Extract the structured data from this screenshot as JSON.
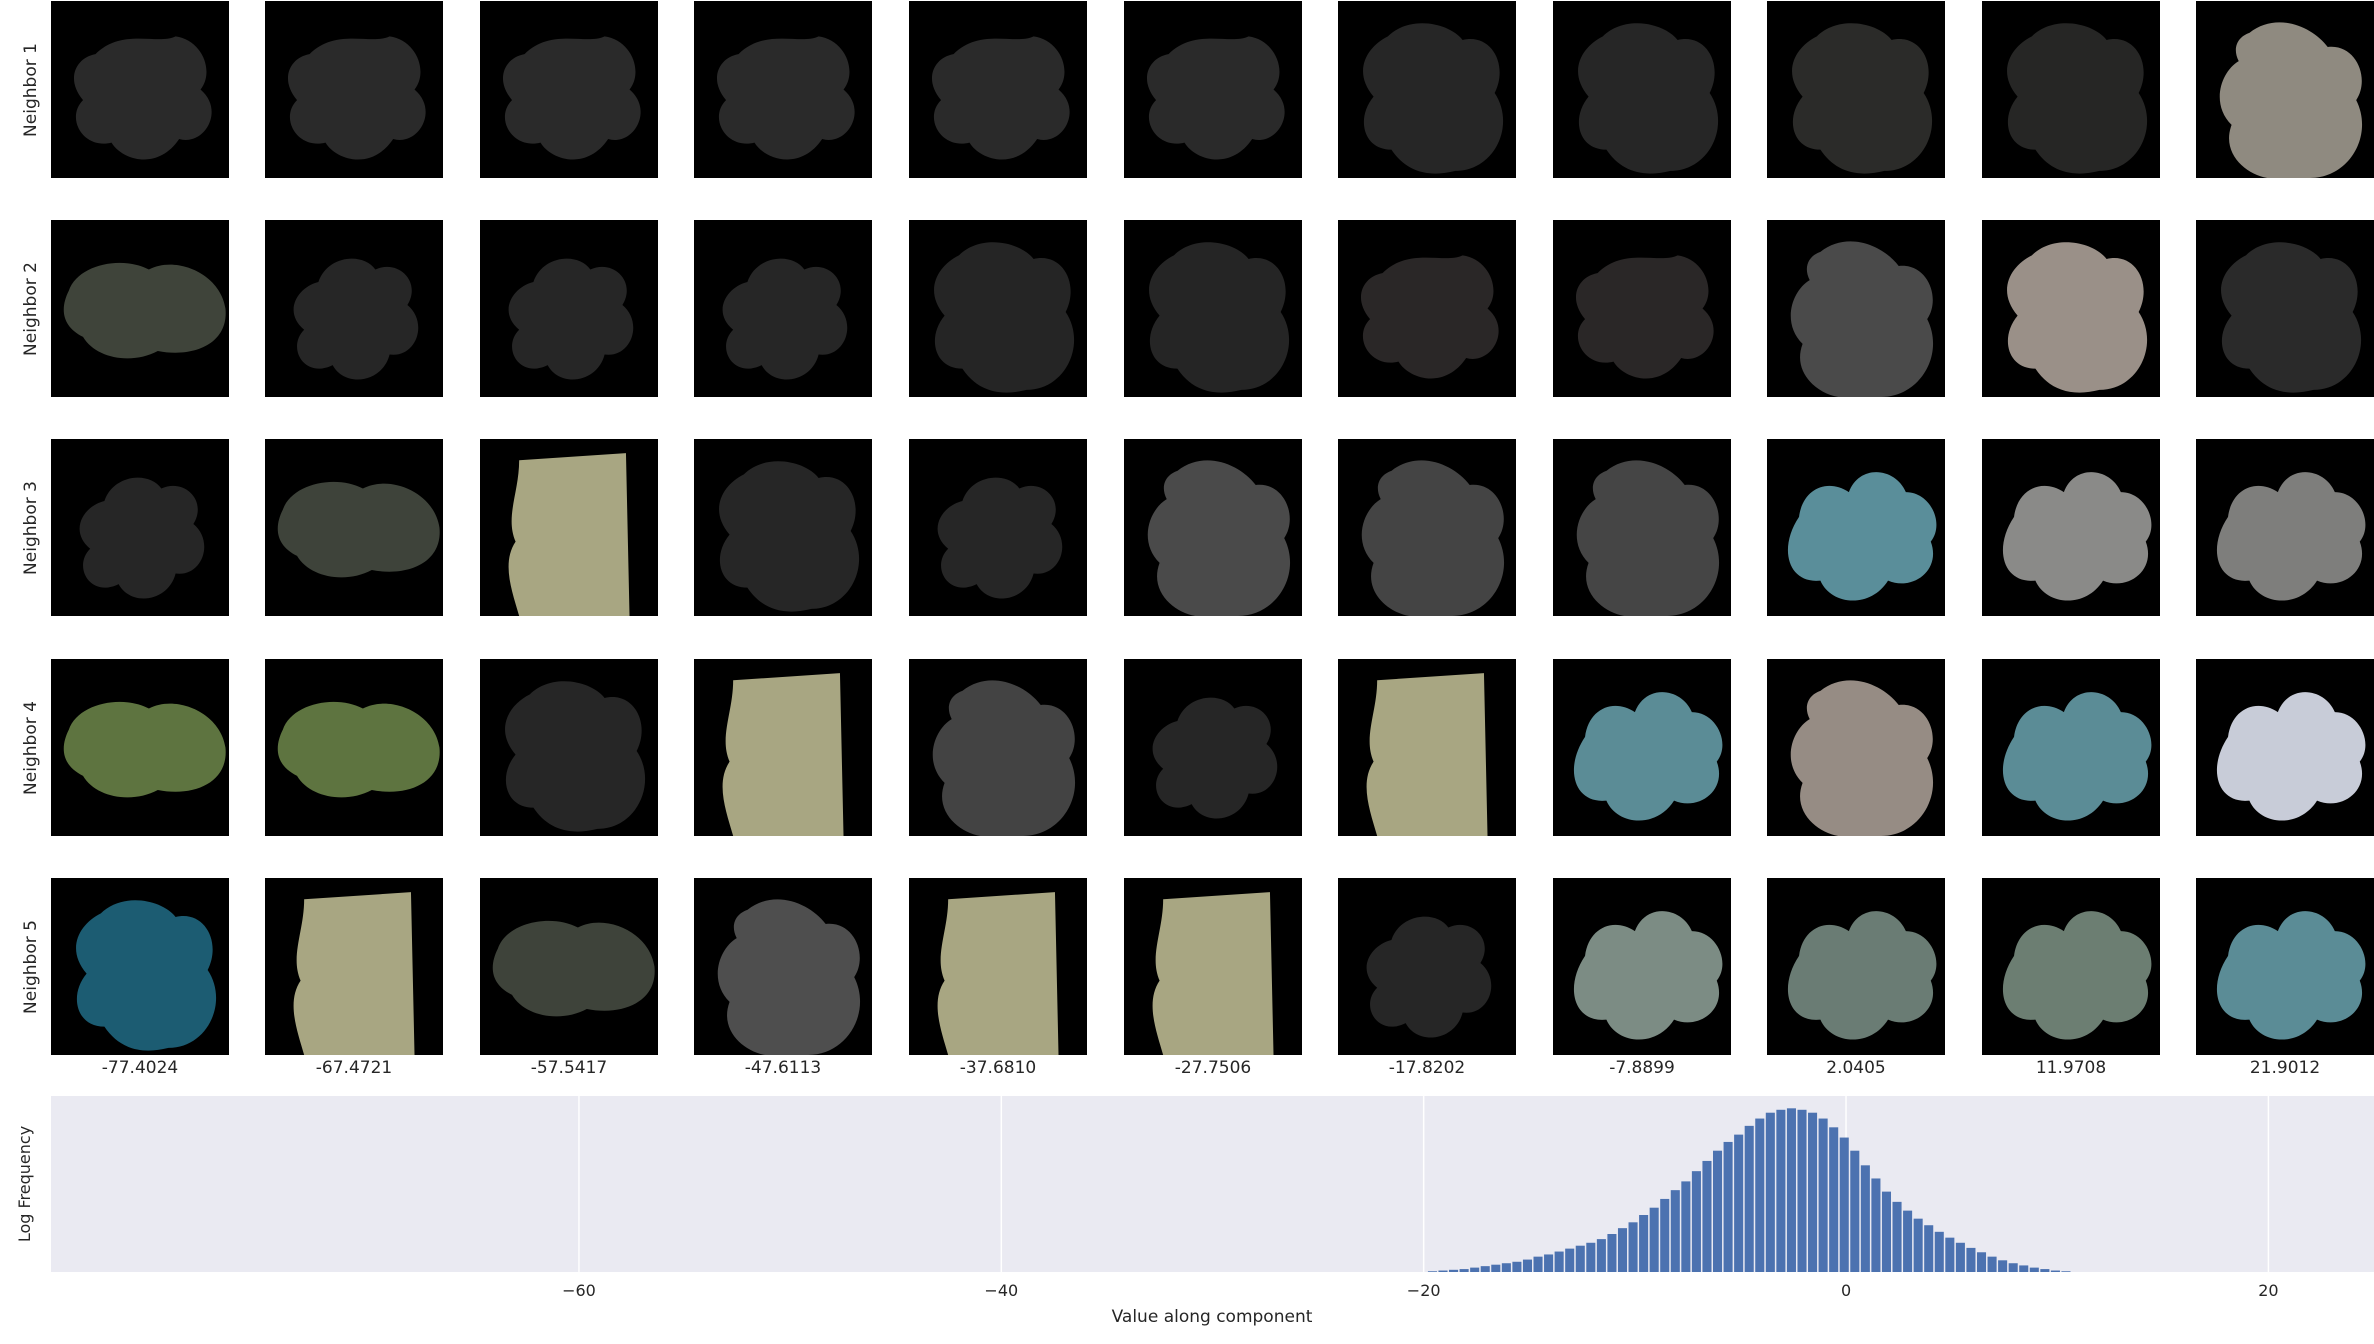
{
  "chart_data": {
    "type": "bar",
    "neighbor_grid": {
      "row_labels": [
        "Neighbor 1",
        "Neighbor 2",
        "Neighbor 3",
        "Neighbor 4",
        "Neighbor 5"
      ],
      "column_values": [
        "-77.4024",
        "-67.4721",
        "-57.5417",
        "-47.6113",
        "-37.6810",
        "-27.7506",
        "-17.8202",
        "-7.8899",
        "2.0405",
        "11.9708",
        "21.9012"
      ],
      "tile_colors": [
        [
          "#2a2a2a",
          "#2a2a2a",
          "#2a2a2a",
          "#2a2a2a",
          "#2a2a2a",
          "#2a2a2a",
          "#262626",
          "#262626",
          "#2b2b29",
          "#262625",
          "#8f8a80"
        ],
        [
          "#3f443a",
          "#262626",
          "#262626",
          "#262626",
          "#252525",
          "#252525",
          "#2a2727",
          "#2a2727",
          "#4a4a4a",
          "#9a9088",
          "#2a2a2a"
        ],
        [
          "#262626",
          "#3e433a",
          "#a8a682",
          "#262626",
          "#262626",
          "#4a4a4a",
          "#444444",
          "#454545",
          "#5a8e9a",
          "#8a8a88",
          "#7e7e7c"
        ],
        [
          "#5e7440",
          "#5e7440",
          "#262626",
          "#a8a682",
          "#434343",
          "#262626",
          "#a8a682",
          "#5b8c96",
          "#968c84",
          "#5b8c96",
          "#c8ccd8"
        ],
        [
          "#1c5c72",
          "#a8a682",
          "#3e433a",
          "#4e4e4e",
          "#a8a682",
          "#a8a682",
          "#262626",
          "#7c8c84",
          "#6a7c74",
          "#6c7e72",
          "#5b8c96"
        ]
      ]
    },
    "histogram": {
      "xlabel": "Value along component",
      "ylabel": "Log Frequency",
      "xlim": [
        -85,
        25
      ],
      "xticks": [
        -60,
        -40,
        -20,
        0,
        20
      ],
      "xtick_labels": [
        "−60",
        "−40",
        "−20",
        "0",
        "20"
      ],
      "grid": true,
      "bar_color": "#4c72b0",
      "background_color": "#eaeaf2",
      "bin_width": 0.5,
      "bin_start": -19.8,
      "counts": [
        1,
        2,
        3,
        4,
        6,
        8,
        10,
        12,
        14,
        17,
        21,
        24,
        28,
        32,
        36,
        40,
        45,
        52,
        60,
        68,
        78,
        88,
        100,
        112,
        124,
        138,
        152,
        166,
        178,
        188,
        200,
        210,
        218,
        222,
        224,
        222,
        218,
        210,
        198,
        184,
        166,
        146,
        128,
        110,
        96,
        84,
        73,
        64,
        55,
        47,
        40,
        33,
        27,
        21,
        16,
        12,
        9,
        6,
        4,
        2,
        1
      ]
    }
  }
}
